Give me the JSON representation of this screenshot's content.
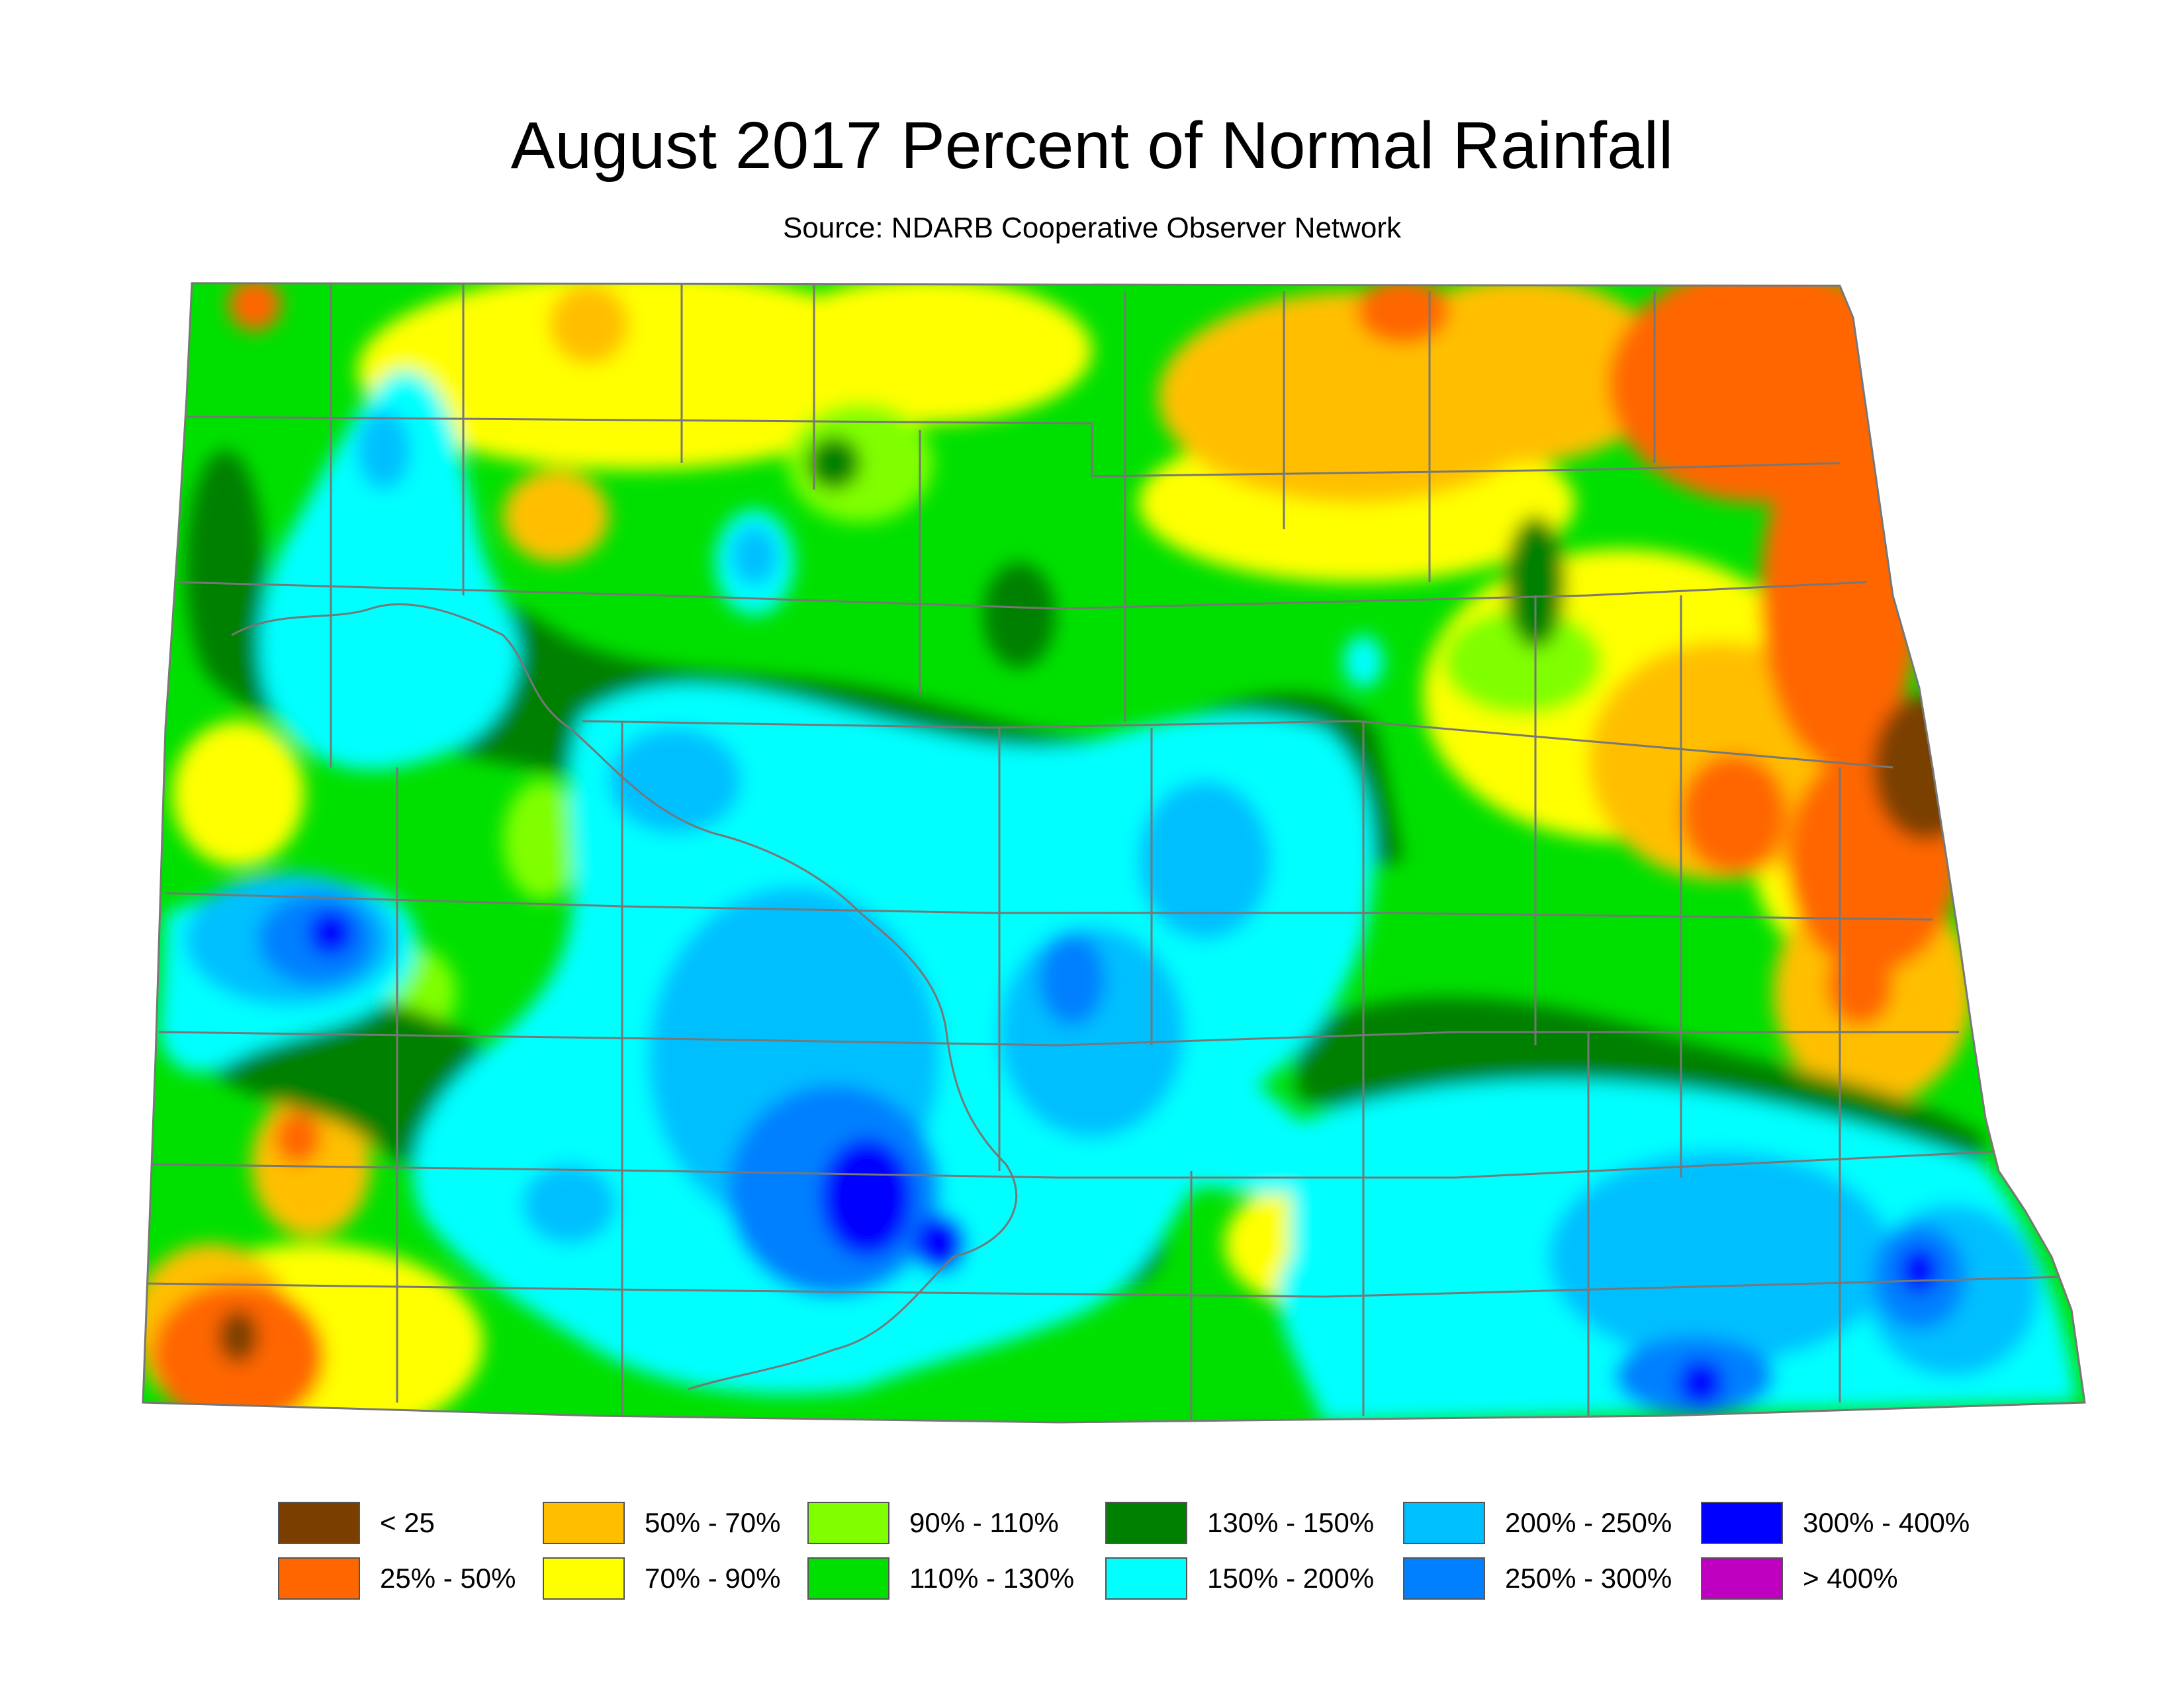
{
  "title": "August 2017 Percent of Normal Rainfall",
  "subtitle": "Source: NDARB Cooperative Observer Network",
  "colors": {
    "lt25": "#7a3f00",
    "p25_50": "#ff6600",
    "p50_70": "#ffbf00",
    "p70_90": "#ffff00",
    "p90_110": "#80ff00",
    "p110_130": "#00e000",
    "p130_150": "#008000",
    "p150_200": "#00ffff",
    "p200_250": "#00bfff",
    "p250_300": "#0080ff",
    "p300_400": "#0000ff",
    "gt400": "#c000c0"
  },
  "legend": [
    {
      "label": "< 25",
      "color": "#7a3f00"
    },
    {
      "label": "25% - 50%",
      "color": "#ff6600"
    },
    {
      "label": "50% - 70%",
      "color": "#ffbf00"
    },
    {
      "label": "70% - 90%",
      "color": "#ffff00"
    },
    {
      "label": "90% - 110%",
      "color": "#80ff00"
    },
    {
      "label": "110% - 130%",
      "color": "#00e000"
    },
    {
      "label": "130% - 150%",
      "color": "#008000"
    },
    {
      "label": "150% - 200%",
      "color": "#00ffff"
    },
    {
      "label": "200% - 250%",
      "color": "#00bfff"
    },
    {
      "label": "250% - 300%",
      "color": "#0080ff"
    },
    {
      "label": "300% - 400%",
      "color": "#0000ff"
    },
    {
      "label": "> 400%",
      "color": "#c000c0"
    }
  ]
}
